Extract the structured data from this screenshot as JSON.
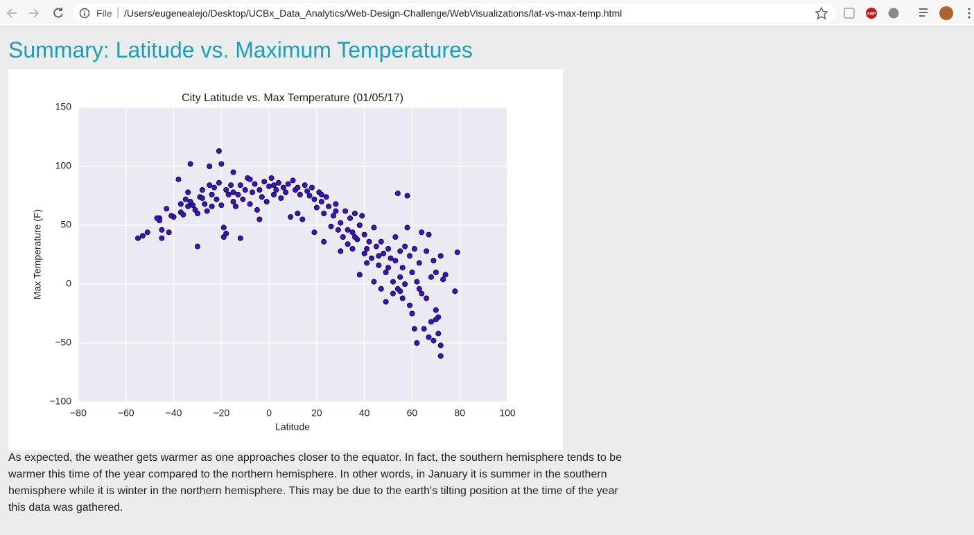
{
  "browser": {
    "file_label": "File",
    "url": "/Users/eugenealejo/Desktop/UCBx_Data_Analytics/Web-Design-Challenge/WebVisualizations/lat-vs-max-temp.html",
    "extension_label": "ABP"
  },
  "heading": "Summary: Latitude vs. Maximum Temperatures",
  "chart_data": {
    "type": "scatter",
    "title": "City Latitude vs. Max Temperature (01/05/17)",
    "x_label": "Latitude",
    "y_label": "Max Temperature (F)",
    "color": "#3d10d0",
    "grid": true,
    "xlim": [
      -80,
      100
    ],
    "ylim": [
      -100,
      150
    ],
    "xticks": [
      {
        "value": -80,
        "label": "−80"
      },
      {
        "value": -60,
        "label": "−60"
      },
      {
        "value": -40,
        "label": "−40"
      },
      {
        "value": -20,
        "label": "−20"
      },
      0,
      20,
      40,
      60,
      80,
      100
    ],
    "yticks": [
      {
        "value": -100,
        "label": "−100"
      },
      {
        "value": -50,
        "label": "−50"
      },
      0,
      50,
      100,
      150
    ],
    "x": [
      -55,
      -53,
      -51,
      -46,
      -46,
      -45,
      -45,
      -43,
      -42,
      -40,
      -38,
      -37,
      -37,
      -36,
      -35,
      -34,
      -34,
      -33,
      -33,
      -32,
      -31,
      -30,
      -30,
      -29,
      -28,
      -27,
      -26,
      -25,
      -25,
      -24,
      -24,
      -23,
      -22,
      -21,
      -21,
      -20,
      -20,
      -19,
      -19,
      -18,
      -18,
      -17,
      -16,
      -15,
      -15,
      -14,
      -13,
      -12,
      -12,
      -11,
      -10,
      -9,
      -8,
      -8,
      -7,
      -6,
      -5,
      -4,
      -4,
      -3,
      -2,
      -1,
      0,
      1,
      2,
      3,
      4,
      5,
      6,
      7,
      8,
      9,
      10,
      11,
      12,
      13,
      14,
      15,
      16,
      17,
      18,
      19,
      19,
      20,
      21,
      22,
      23,
      23,
      24,
      25,
      26,
      27,
      28,
      29,
      30,
      30,
      31,
      32,
      33,
      34,
      35,
      35,
      36,
      37,
      38,
      38,
      39,
      40,
      40,
      41,
      42,
      43,
      44,
      44,
      45,
      46,
      47,
      47,
      48,
      49,
      49,
      50,
      51,
      52,
      52,
      53,
      53,
      54,
      54,
      55,
      55,
      56,
      56,
      57,
      57,
      58,
      58,
      59,
      59,
      60,
      60,
      61,
      61,
      62,
      62,
      63,
      64,
      64,
      65,
      66,
      66,
      67,
      67,
      68,
      68,
      69,
      69,
      70,
      70,
      71,
      71,
      72,
      72,
      72,
      73,
      74,
      78,
      79,
      -47,
      -41,
      -28,
      -15,
      2,
      12,
      22,
      28,
      33,
      36,
      41,
      46,
      50,
      55,
      63,
      70
    ],
    "values": [
      39,
      41,
      44,
      56,
      54,
      46,
      39,
      64,
      44,
      57,
      89,
      68,
      61,
      59,
      72,
      78,
      66,
      102,
      70,
      67,
      63,
      60,
      32,
      74,
      80,
      68,
      62,
      84,
      100,
      76,
      66,
      82,
      72,
      86,
      113,
      102,
      67,
      48,
      40,
      43,
      80,
      76,
      84,
      95,
      70,
      66,
      76,
      39,
      84,
      72,
      80,
      90,
      89,
      68,
      78,
      85,
      63,
      55,
      80,
      74,
      87,
      70,
      83,
      90,
      76,
      80,
      86,
      73,
      82,
      78,
      85,
      57,
      88,
      80,
      60,
      76,
      55,
      84,
      79,
      75,
      82,
      44,
      72,
      65,
      78,
      70,
      36,
      60,
      74,
      66,
      49,
      58,
      68,
      46,
      28,
      52,
      40,
      62,
      34,
      56,
      44,
      30,
      60,
      38,
      50,
      8,
      58,
      26,
      42,
      18,
      36,
      22,
      48,
      2,
      32,
      16,
      36,
      -4,
      26,
      -15,
      10,
      30,
      22,
      2,
      -8,
      20,
      40,
      77,
      -4,
      28,
      6,
      14,
      -12,
      32,
      0,
      75,
      48,
      24,
      -18,
      10,
      -25,
      30,
      -38,
      2,
      -50,
      18,
      44,
      -8,
      -38,
      28,
      -12,
      42,
      -45,
      6,
      -32,
      20,
      -48,
      -22,
      10,
      -28,
      -42,
      24,
      -52,
      -61,
      4,
      8,
      -6,
      27,
      56,
      58,
      73,
      78,
      84,
      82,
      76,
      62,
      46,
      40,
      30,
      24,
      14,
      -6,
      -4,
      -30
    ]
  },
  "paragraph": "As expected, the weather gets warmer as one approaches closer to the equator. In fact, the southern hemisphere tends to be warmer this time of the year compared to the northern hemisphere. In other words, in January it is summer in the southern hemisphere while it is winter in the northern hemisphere. This may be due to the earth's tilting position at the time of the year this data was gathered."
}
